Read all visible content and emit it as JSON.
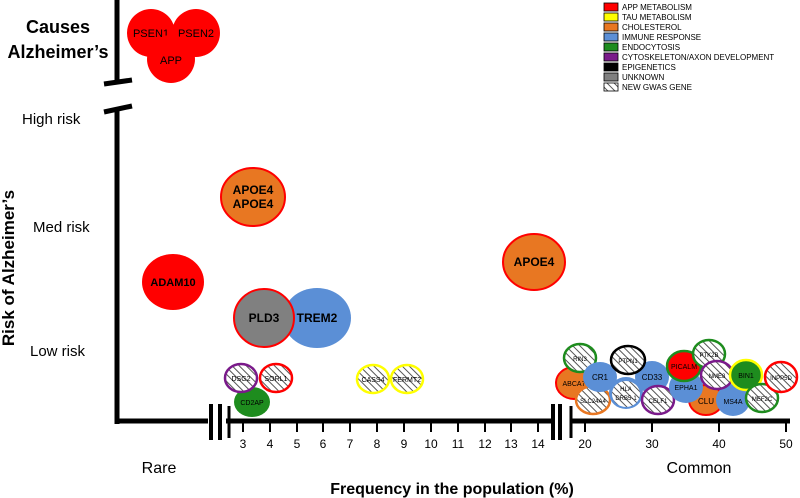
{
  "colors": {
    "app": "#ff0000",
    "tau": "#ffff00",
    "cholesterol": "#e87722",
    "immune": "#5b8fd6",
    "endocytosis": "#1e8c1e",
    "cytoskeleton": "#7a1a8a",
    "epigenetics": "#000000",
    "unknown": "#808080",
    "edge_app": "#e02020"
  },
  "y_axis": {
    "title": "Risk of Alzheimer’s",
    "top_label_line1": "Causes",
    "top_label_line2": "Alzheimer’s",
    "levels": [
      "High risk",
      "Med risk",
      "Low risk"
    ]
  },
  "x_axis": {
    "title": "Frequency in the population (%)",
    "left_label": "Rare",
    "right_label": "Common",
    "ticks_mid": [
      "3",
      "4",
      "5",
      "6",
      "7",
      "8",
      "9",
      "10",
      "11",
      "12",
      "13",
      "14"
    ],
    "ticks_right": [
      "20",
      "30",
      "40",
      "50"
    ]
  },
  "legend": [
    {
      "label": "APP METABOLISM",
      "swatch": "app"
    },
    {
      "label": "TAU METABOLISM",
      "swatch": "tau"
    },
    {
      "label": "CHOLESTEROL",
      "swatch": "cholesterol"
    },
    {
      "label": "IMMUNE RESPONSE",
      "swatch": "immune"
    },
    {
      "label": "ENDOCYTOSIS",
      "swatch": "endocytosis"
    },
    {
      "label": "CYTOSKELETON/AXON DEVELOPMENT",
      "swatch": "cytoskeleton"
    },
    {
      "label": "EPIGENETICS",
      "swatch": "epigenetics"
    },
    {
      "label": "UNKNOWN",
      "swatch": "unknown"
    },
    {
      "label": "NEW GWAS GENE",
      "swatch": "hatch"
    }
  ],
  "genes": {
    "psen1": "PSEN1",
    "psen2": "PSEN2",
    "app": "APP",
    "apoe4_pair_1": "APOE4",
    "apoe4_pair_2": "APOE4",
    "adam10": "ADAM10",
    "pld3": "PLD3",
    "trem2": "TREM2",
    "apoe4_common": "APOE4",
    "dsg2": "DSG2",
    "sorl1": "SORL1",
    "cd2ap": "CD2AP",
    "casS4": "CASS4",
    "fermt2": "FERMT2",
    "rin3": "RIN3",
    "ptpn1": "PTPN1",
    "ptk2b": "PTK2B",
    "abca7": "ABCA7",
    "cr1": "CR1",
    "cd33": "CD33",
    "picalm": "PICALM",
    "nme8": "NME8",
    "bin1": "BIN1",
    "inpp5d": "INPP5D",
    "slc24a4": "SLC24A4",
    "hla1": "HLA",
    "hla2": "DRB5-1",
    "celf1": "CELF1",
    "epha1": "EPHA1",
    "clu": "CLU",
    "ms4a": "MS4A",
    "mef2c": "MEF2C"
  }
}
